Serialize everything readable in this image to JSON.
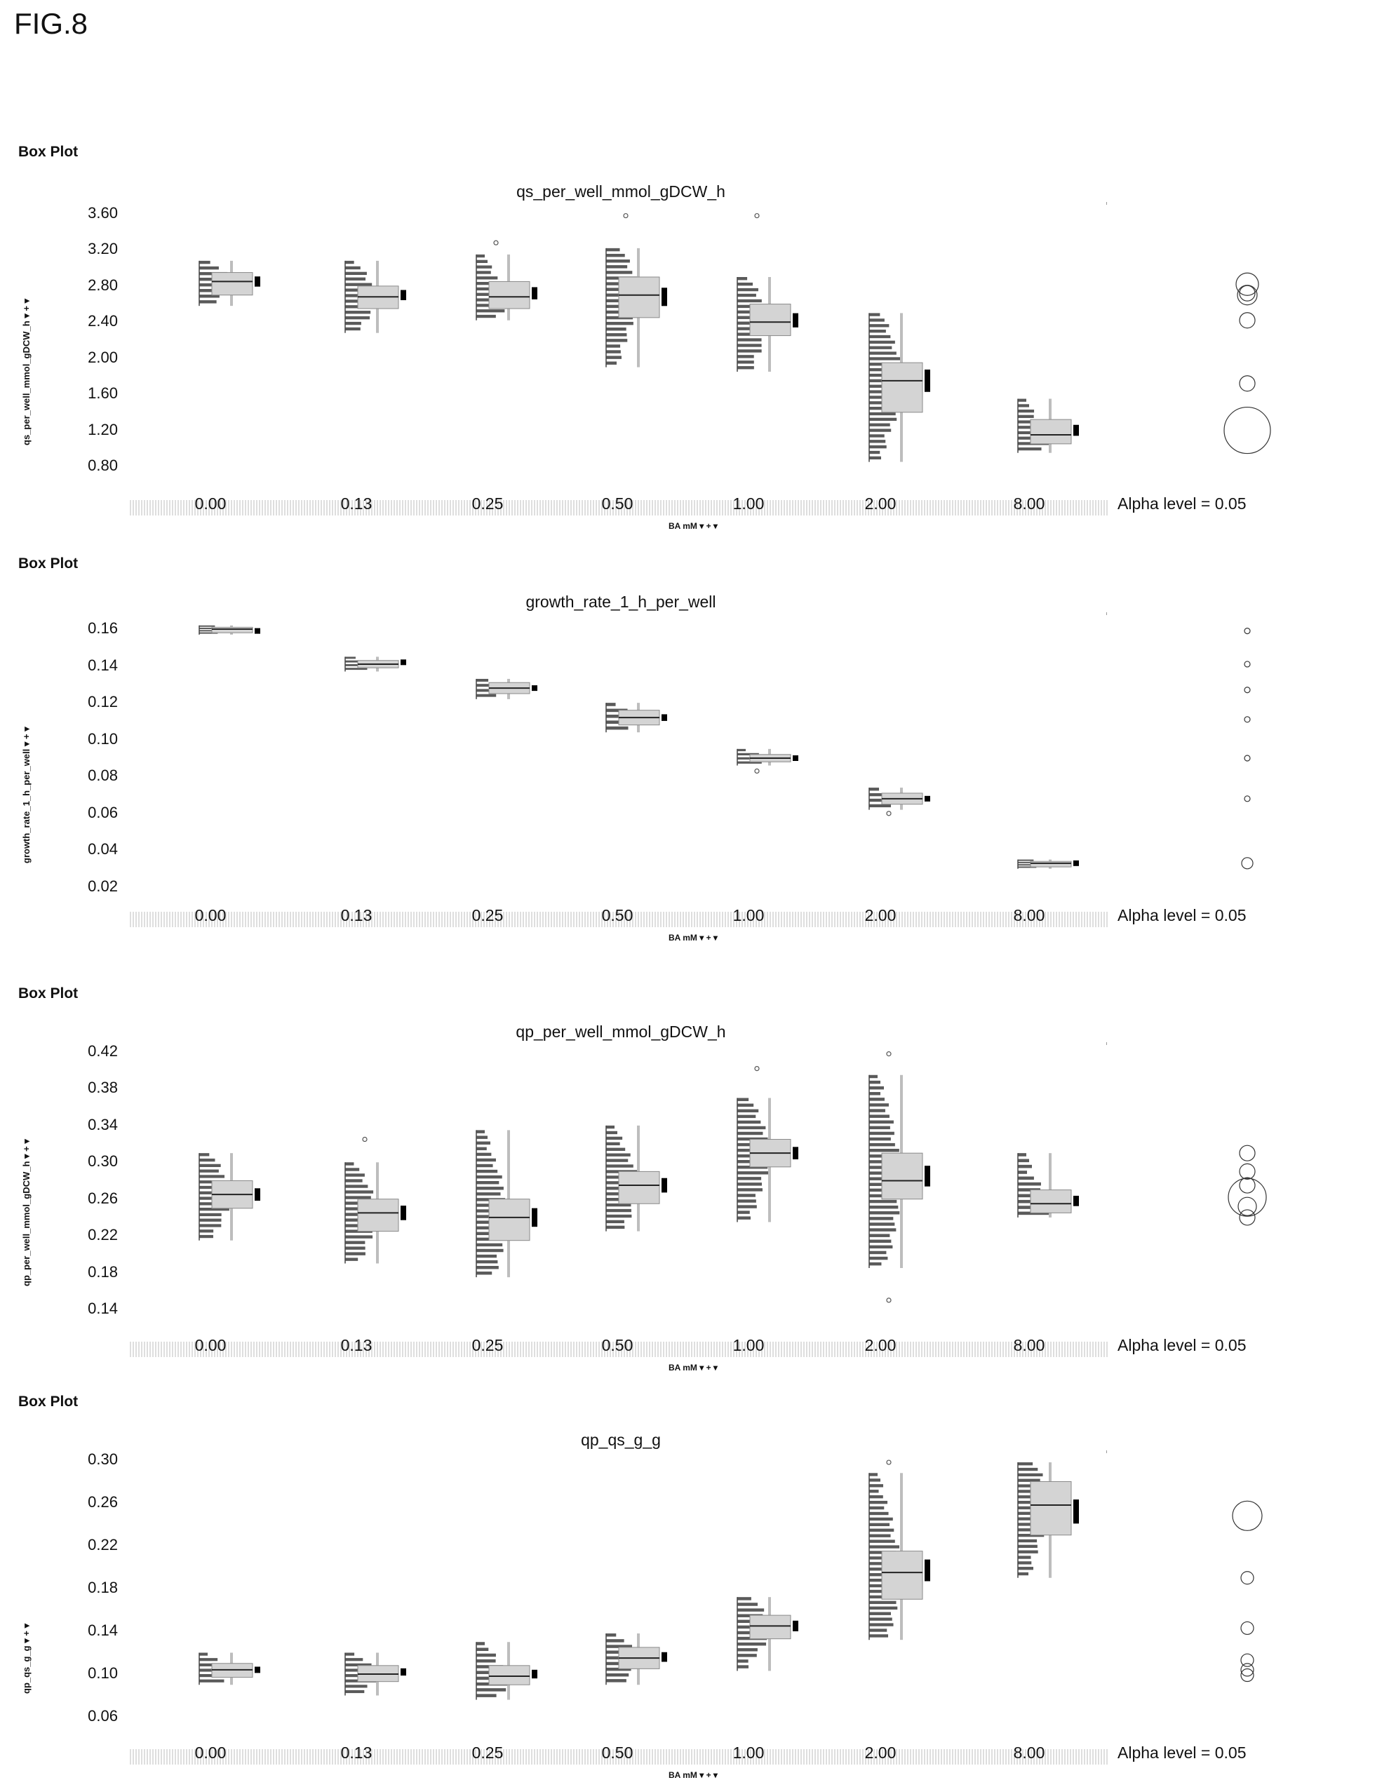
{
  "figure_label": "FIG.8",
  "chart_data": [
    {
      "type": "box",
      "header": "Box Plot",
      "title": "qs_per_well_mmol_gDCW_h",
      "ylabel": "qs_per_well_mmol_gDCW_h",
      "xlabel": "BA mM",
      "alpha_text": "Alpha level = 0.05",
      "categories": [
        "0.00",
        "0.13",
        "0.25",
        "0.50",
        "1.00",
        "2.00",
        "8.00"
      ],
      "yticks": [
        "3.60",
        "3.20",
        "2.80",
        "2.40",
        "2.00",
        "1.60",
        "1.20",
        "0.80"
      ],
      "ylim": [
        0.8,
        3.6
      ],
      "boxes": [
        {
          "min": 2.58,
          "q1": 2.7,
          "median": 2.85,
          "q3": 2.95,
          "max": 3.08,
          "mean": 2.85,
          "outliers": []
        },
        {
          "min": 2.28,
          "q1": 2.55,
          "median": 2.68,
          "q3": 2.8,
          "max": 3.08,
          "mean": 2.7,
          "outliers": []
        },
        {
          "min": 2.42,
          "q1": 2.55,
          "median": 2.68,
          "q3": 2.85,
          "max": 3.15,
          "mean": 2.72,
          "outliers": [
            3.28
          ]
        },
        {
          "min": 1.9,
          "q1": 2.45,
          "median": 2.7,
          "q3": 2.9,
          "max": 3.22,
          "mean": 2.68,
          "outliers": [
            3.58
          ]
        },
        {
          "min": 1.85,
          "q1": 2.25,
          "median": 2.4,
          "q3": 2.6,
          "max": 2.9,
          "mean": 2.42,
          "outliers": [
            3.58
          ]
        },
        {
          "min": 0.85,
          "q1": 1.4,
          "median": 1.75,
          "q3": 1.95,
          "max": 2.5,
          "mean": 1.75,
          "outliers": []
        },
        {
          "min": 0.95,
          "q1": 1.05,
          "median": 1.15,
          "q3": 1.32,
          "max": 1.55,
          "mean": 1.2,
          "outliers": []
        }
      ],
      "circles": [
        {
          "y": 2.82,
          "r": 16
        },
        {
          "y": 2.7,
          "r": 14
        },
        {
          "y": 2.72,
          "r": 11
        },
        {
          "y": 2.42,
          "r": 11
        },
        {
          "y": 1.72,
          "r": 11
        },
        {
          "y": 1.2,
          "r": 33
        }
      ]
    },
    {
      "type": "box",
      "header": "Box Plot",
      "title": "growth_rate_1_h_per_well",
      "ylabel": "growth_rate_1_h_per_well",
      "xlabel": "BA mM",
      "alpha_text": "Alpha level = 0.05",
      "categories": [
        "0.00",
        "0.13",
        "0.25",
        "0.50",
        "1.00",
        "2.00",
        "8.00"
      ],
      "yticks": [
        "0.16",
        "0.14",
        "0.12",
        "0.10",
        "0.08",
        "0.06",
        "0.04",
        "0.02"
      ],
      "ylim": [
        0.02,
        0.16
      ],
      "boxes": [
        {
          "min": 0.157,
          "q1": 0.158,
          "median": 0.16,
          "q3": 0.161,
          "max": 0.162,
          "mean": 0.159,
          "outliers": []
        },
        {
          "min": 0.137,
          "q1": 0.139,
          "median": 0.141,
          "q3": 0.143,
          "max": 0.145,
          "mean": 0.142,
          "outliers": []
        },
        {
          "min": 0.122,
          "q1": 0.125,
          "median": 0.128,
          "q3": 0.131,
          "max": 0.133,
          "mean": 0.128,
          "outliers": []
        },
        {
          "min": 0.104,
          "q1": 0.108,
          "median": 0.112,
          "q3": 0.116,
          "max": 0.12,
          "mean": 0.112,
          "outliers": []
        },
        {
          "min": 0.086,
          "q1": 0.088,
          "median": 0.09,
          "q3": 0.092,
          "max": 0.095,
          "mean": 0.09,
          "outliers": [
            0.083
          ]
        },
        {
          "min": 0.062,
          "q1": 0.065,
          "median": 0.068,
          "q3": 0.071,
          "max": 0.074,
          "mean": 0.068,
          "outliers": [
            0.06
          ]
        },
        {
          "min": 0.03,
          "q1": 0.031,
          "median": 0.033,
          "q3": 0.034,
          "max": 0.035,
          "mean": 0.033,
          "outliers": []
        }
      ],
      "circles": [
        {
          "y": 0.159,
          "r": 4
        },
        {
          "y": 0.141,
          "r": 4
        },
        {
          "y": 0.127,
          "r": 4
        },
        {
          "y": 0.111,
          "r": 4
        },
        {
          "y": 0.09,
          "r": 4
        },
        {
          "y": 0.068,
          "r": 4
        },
        {
          "y": 0.033,
          "r": 8
        }
      ]
    },
    {
      "type": "box",
      "header": "Box Plot",
      "title": "qp_per_well_mmol_gDCW_h",
      "ylabel": "qp_per_well_mmol_gDCW_h",
      "xlabel": "BA mM",
      "alpha_text": "Alpha level = 0.05",
      "categories": [
        "0.00",
        "0.13",
        "0.25",
        "0.50",
        "1.00",
        "2.00",
        "8.00"
      ],
      "yticks": [
        "0.42",
        "0.38",
        "0.34",
        "0.30",
        "0.26",
        "0.22",
        "0.18",
        "0.14"
      ],
      "ylim": [
        0.14,
        0.42
      ],
      "boxes": [
        {
          "min": 0.215,
          "q1": 0.25,
          "median": 0.265,
          "q3": 0.28,
          "max": 0.31,
          "mean": 0.265,
          "outliers": []
        },
        {
          "min": 0.19,
          "q1": 0.225,
          "median": 0.245,
          "q3": 0.26,
          "max": 0.3,
          "mean": 0.245,
          "outliers": [
            0.325
          ]
        },
        {
          "min": 0.175,
          "q1": 0.215,
          "median": 0.24,
          "q3": 0.26,
          "max": 0.335,
          "mean": 0.24,
          "outliers": []
        },
        {
          "min": 0.225,
          "q1": 0.255,
          "median": 0.275,
          "q3": 0.29,
          "max": 0.34,
          "mean": 0.275,
          "outliers": []
        },
        {
          "min": 0.235,
          "q1": 0.295,
          "median": 0.31,
          "q3": 0.325,
          "max": 0.37,
          "mean": 0.31,
          "outliers": [
            0.402
          ]
        },
        {
          "min": 0.185,
          "q1": 0.26,
          "median": 0.28,
          "q3": 0.31,
          "max": 0.395,
          "mean": 0.285,
          "outliers": [
            0.418,
            0.15
          ]
        },
        {
          "min": 0.24,
          "q1": 0.245,
          "median": 0.255,
          "q3": 0.27,
          "max": 0.31,
          "mean": 0.258,
          "outliers": []
        }
      ],
      "circles": [
        {
          "y": 0.31,
          "r": 11
        },
        {
          "y": 0.29,
          "r": 11
        },
        {
          "y": 0.275,
          "r": 11
        },
        {
          "y": 0.262,
          "r": 27
        },
        {
          "y": 0.252,
          "r": 13
        },
        {
          "y": 0.24,
          "r": 11
        }
      ]
    },
    {
      "type": "box",
      "header": "Box Plot",
      "title": "qp_qs_g_g",
      "ylabel": "qp_qs_g_g",
      "xlabel": "BA mM",
      "alpha_text": "Alpha level = 0.05",
      "categories": [
        "0.00",
        "0.13",
        "0.25",
        "0.50",
        "1.00",
        "2.00",
        "8.00"
      ],
      "yticks": [
        "0.30",
        "0.26",
        "0.22",
        "0.18",
        "0.14",
        "0.10",
        "0.06"
      ],
      "ylim": [
        0.06,
        0.3
      ],
      "boxes": [
        {
          "min": 0.09,
          "q1": 0.097,
          "median": 0.104,
          "q3": 0.11,
          "max": 0.12,
          "mean": 0.104,
          "outliers": []
        },
        {
          "min": 0.08,
          "q1": 0.093,
          "median": 0.1,
          "q3": 0.108,
          "max": 0.12,
          "mean": 0.102,
          "outliers": []
        },
        {
          "min": 0.076,
          "q1": 0.09,
          "median": 0.098,
          "q3": 0.108,
          "max": 0.13,
          "mean": 0.1,
          "outliers": []
        },
        {
          "min": 0.09,
          "q1": 0.105,
          "median": 0.115,
          "q3": 0.125,
          "max": 0.138,
          "mean": 0.116,
          "outliers": []
        },
        {
          "min": 0.103,
          "q1": 0.133,
          "median": 0.145,
          "q3": 0.155,
          "max": 0.172,
          "mean": 0.145,
          "outliers": []
        },
        {
          "min": 0.132,
          "q1": 0.17,
          "median": 0.195,
          "q3": 0.215,
          "max": 0.288,
          "mean": 0.197,
          "outliers": [
            0.298
          ]
        },
        {
          "min": 0.19,
          "q1": 0.23,
          "median": 0.258,
          "q3": 0.28,
          "max": 0.298,
          "mean": 0.252,
          "outliers": []
        }
      ],
      "circles": [
        {
          "y": 0.248,
          "r": 21
        },
        {
          "y": 0.19,
          "r": 9
        },
        {
          "y": 0.143,
          "r": 9
        },
        {
          "y": 0.113,
          "r": 9
        },
        {
          "y": 0.104,
          "r": 9
        },
        {
          "y": 0.099,
          "r": 9
        }
      ]
    }
  ]
}
